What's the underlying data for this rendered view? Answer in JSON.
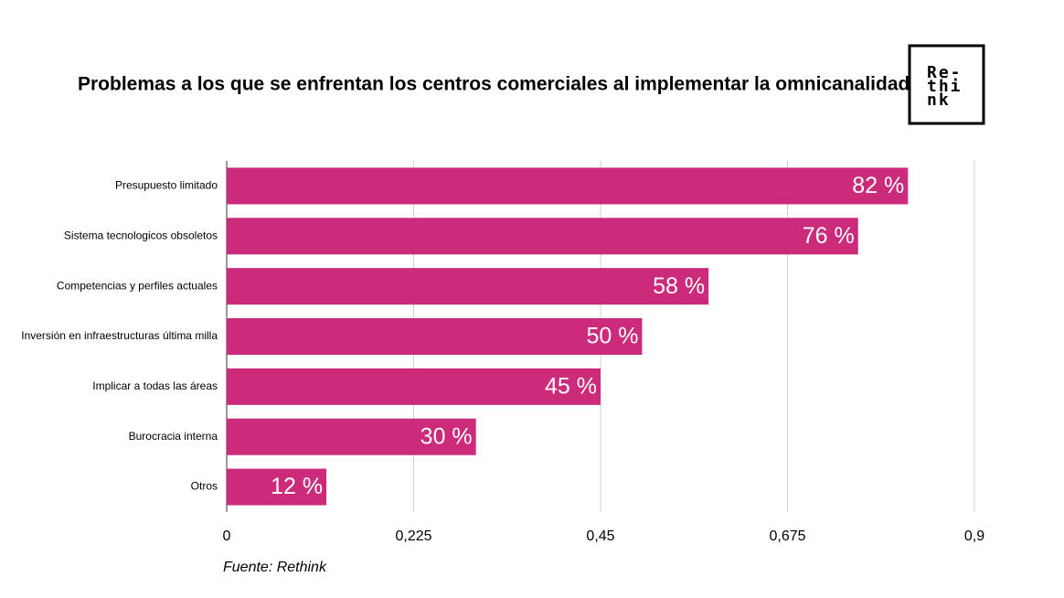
{
  "chart_data": {
    "type": "bar",
    "title": "Problemas a los que se enfrentan los centros comerciales al implementar la omnicanalidad",
    "categories": [
      "Presupuesto limitado",
      "Sistema tecnologicos obsoletos",
      "Competencias y perfiles actuales",
      "Inversión en infraestructuras última milla",
      "Implicar a todas las áreas",
      "Burocracia interna",
      "Otros"
    ],
    "values": [
      0.82,
      0.76,
      0.58,
      0.5,
      0.45,
      0.3,
      0.12
    ],
    "value_labels": [
      "82 %",
      "76 %",
      "58 %",
      "50 %",
      "45 %",
      "30 %",
      "12 %"
    ],
    "color": "#cc2a7a",
    "xlim": [
      0,
      0.9
    ],
    "xticks": [
      0,
      {
        "value": 0.225,
        "label": "0,225"
      },
      {
        "value": 0.45,
        "label": "0,45"
      },
      {
        "value": 0.675,
        "label": "0,675"
      },
      {
        "value": 0.9,
        "label": "0,9"
      }
    ],
    "grid": true,
    "source": "Fuente: Rethink",
    "logo": [
      "Re-",
      "thi",
      "nk"
    ]
  }
}
